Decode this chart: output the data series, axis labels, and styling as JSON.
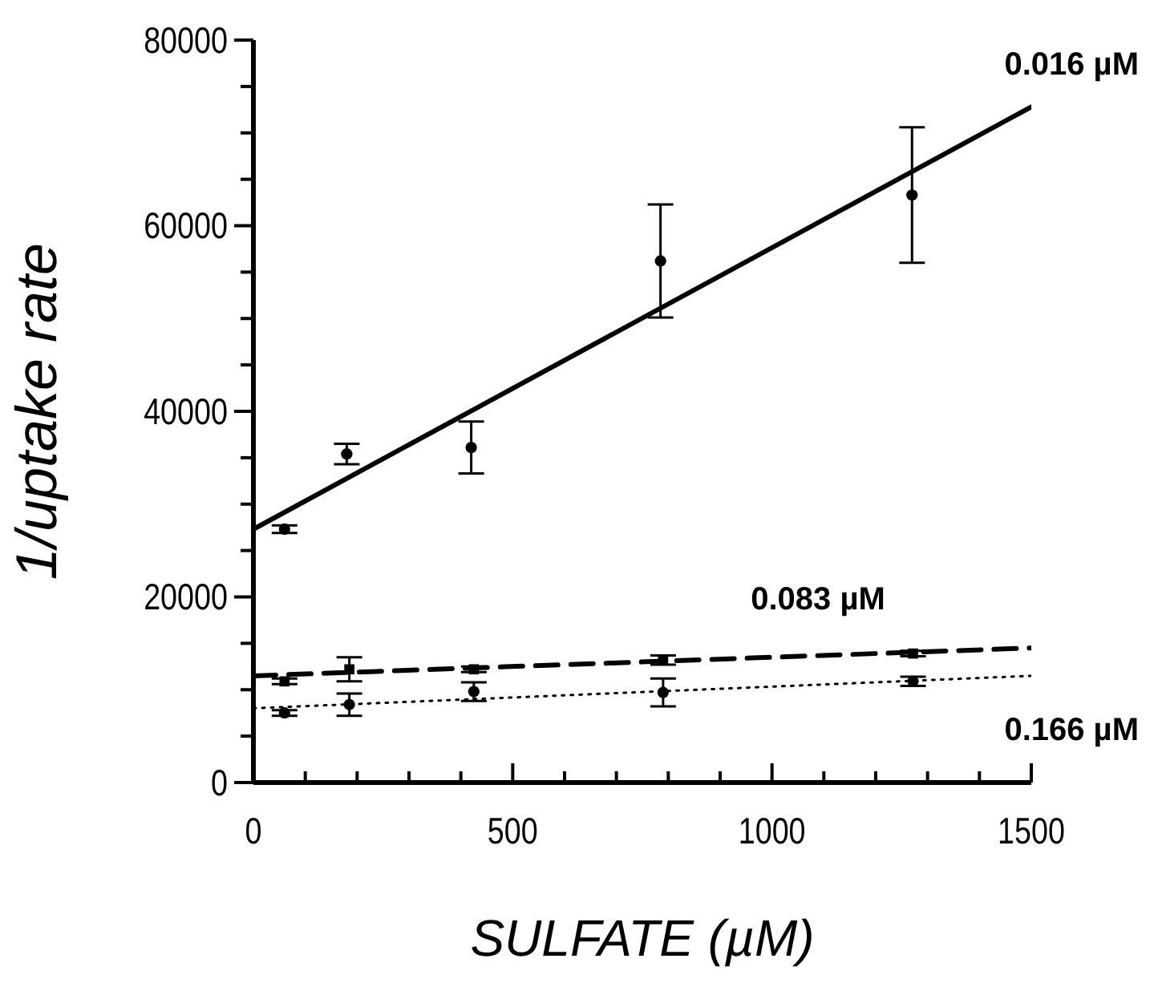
{
  "chart_data": {
    "type": "scatter",
    "xlabel": "SULFATE (µM)",
    "ylabel": "1/uptake rate",
    "xlim": [
      0,
      1500
    ],
    "xticks": [
      0,
      {
        "value": 100,
        "label": null
      },
      {
        "value": 200,
        "label": null
      },
      {
        "value": 300,
        "label": null
      },
      {
        "value": 400,
        "label": null
      },
      500,
      {
        "value": 600,
        "label": null
      },
      {
        "value": 700,
        "label": null
      },
      {
        "value": 800,
        "label": null
      },
      {
        "value": 900,
        "label": null
      },
      1000,
      {
        "value": 1100,
        "label": null
      },
      {
        "value": 1200,
        "label": null
      },
      {
        "value": 1300,
        "label": null
      },
      {
        "value": 1400,
        "label": null
      },
      1500
    ],
    "ylim": [
      0,
      80000
    ],
    "yticks": [
      0,
      {
        "value": 5000,
        "label": null
      },
      {
        "value": 10000,
        "label": null
      },
      {
        "value": 15000,
        "label": null
      },
      20000,
      {
        "value": 25000,
        "label": null
      },
      {
        "value": 30000,
        "label": null
      },
      {
        "value": 35000,
        "label": null
      },
      40000,
      {
        "value": 45000,
        "label": null
      },
      {
        "value": 50000,
        "label": null
      },
      {
        "value": 55000,
        "label": null
      },
      60000,
      {
        "value": 65000,
        "label": null
      },
      {
        "value": 70000,
        "label": null
      },
      {
        "value": 75000,
        "label": null
      },
      80000
    ],
    "grid": false,
    "series": [
      {
        "name": "0.016 µM",
        "type": "line",
        "x": [
          0,
          1500
        ],
        "values": [
          27300,
          72800
        ],
        "color": "#000000",
        "line_style": "solid",
        "marker": "none"
      },
      {
        "x": [
          60,
          180,
          420,
          785,
          1270
        ],
        "values": [
          27300,
          35400,
          36100,
          56200,
          63300
        ],
        "errors": [
          400,
          1100,
          2800,
          6100,
          7300
        ],
        "color": "#000000",
        "marker": "circle"
      },
      {
        "name": "0.083 µM",
        "type": "line",
        "x": [
          0,
          1500
        ],
        "values": [
          11500,
          14500
        ],
        "color": "#000000",
        "line_style": "dashed",
        "marker": "none"
      },
      {
        "x": [
          60,
          185,
          425,
          790,
          1272
        ],
        "values": [
          10900,
          12200,
          12200,
          13200,
          13900
        ],
        "errors": [
          300,
          1300,
          300,
          500,
          300
        ],
        "color": "#000000",
        "marker": "square"
      },
      {
        "name": "0.166 µM",
        "type": "line",
        "x": [
          0,
          1500
        ],
        "values": [
          8000,
          11500
        ],
        "color": "#000000",
        "line_style": "dotted",
        "marker": "none"
      },
      {
        "x": [
          60,
          185,
          425,
          790,
          1272
        ],
        "values": [
          7500,
          8400,
          9800,
          9700,
          10900
        ],
        "errors": [
          300,
          1200,
          1000,
          1500,
          500
        ],
        "color": "#000000",
        "marker": "circle"
      }
    ]
  }
}
